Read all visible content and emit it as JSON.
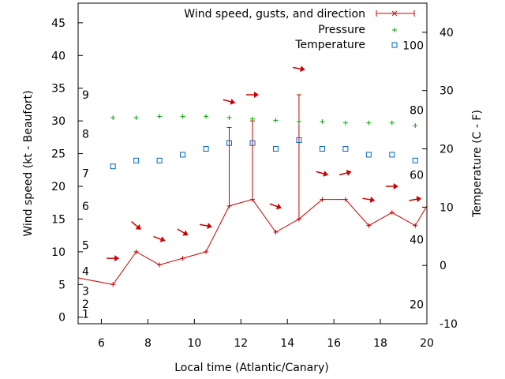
{
  "chart_data": {
    "type": "line",
    "xlabel": "Local time (Atlantic/Canary)",
    "ylabel_left": "Wind speed (kt - Beaufort)",
    "ylabel_right": "Temperature (C - F)",
    "xlim": [
      5,
      20
    ],
    "ylim_left": [
      -1,
      48
    ],
    "ylim_right": [
      -10,
      45
    ],
    "x_ticks": [
      "6",
      "8",
      "10",
      "12",
      "14",
      "16",
      "18",
      "20"
    ],
    "y_ticks_left": [
      "0",
      "5",
      "10",
      "15",
      "20",
      "25",
      "30",
      "35",
      "40",
      "45"
    ],
    "y_ticks_right": [
      "-10",
      "0",
      "10",
      "20",
      "30",
      "40"
    ],
    "fahrenheit_labels": [
      "20",
      "40",
      "60",
      "80",
      "100"
    ],
    "beaufort_labels": [
      "1",
      "2",
      "3",
      "4",
      "5",
      "6",
      "7",
      "8",
      "9"
    ],
    "legend": {
      "placement": "top-right",
      "wind": "Wind speed, gusts, and direction",
      "pressure": "Pressure",
      "temperature": "Temperature"
    },
    "colors": {
      "wind": "#cc0000",
      "pressure": "#00aa00",
      "temperature": "#0066bb"
    },
    "wind": {
      "x": [
        5.0,
        6.5,
        7.5,
        8.5,
        9.5,
        10.5,
        11.5,
        12.5,
        13.5,
        14.5,
        15.5,
        16.5,
        17.5,
        18.5,
        19.5,
        20.0
      ],
      "speed": [
        6,
        5,
        10,
        8,
        9,
        10,
        17,
        18,
        13,
        15,
        18,
        18,
        14,
        16,
        14,
        17
      ]
    },
    "gusts": [
      {
        "x": 11.5,
        "value": 29
      },
      {
        "x": 12.5,
        "value": 30
      },
      {
        "x": 14.5,
        "value": 34
      }
    ],
    "direction_arrows": [
      {
        "x": 6.5,
        "y": 9,
        "angle": 0
      },
      {
        "x": 7.5,
        "y": 14,
        "angle": 40
      },
      {
        "x": 8.5,
        "y": 12,
        "angle": 20
      },
      {
        "x": 9.5,
        "y": 13,
        "angle": 30
      },
      {
        "x": 10.5,
        "y": 14,
        "angle": 10
      },
      {
        "x": 11.5,
        "y": 33,
        "angle": 15
      },
      {
        "x": 12.5,
        "y": 34,
        "angle": 0
      },
      {
        "x": 13.5,
        "y": 17,
        "angle": 20
      },
      {
        "x": 14.5,
        "y": 38,
        "angle": 10
      },
      {
        "x": 15.5,
        "y": 22,
        "angle": 15
      },
      {
        "x": 16.5,
        "y": 22,
        "angle": -15
      },
      {
        "x": 17.5,
        "y": 18,
        "angle": 10
      },
      {
        "x": 18.5,
        "y": 20,
        "angle": 0
      },
      {
        "x": 19.5,
        "y": 18,
        "angle": -10
      }
    ],
    "pressure": {
      "x": [
        6.5,
        7.5,
        8.5,
        9.5,
        10.5,
        11.5,
        12.5,
        13.5,
        14.5,
        15.5,
        16.5,
        17.5,
        18.5,
        19.5
      ],
      "values": [
        30.5,
        30.5,
        30.7,
        30.7,
        30.7,
        30.5,
        30.3,
        30.1,
        29.9,
        29.9,
        29.7,
        29.7,
        29.7,
        29.3
      ]
    },
    "temperature": {
      "x": [
        6.5,
        7.5,
        8.5,
        9.5,
        10.5,
        11.5,
        12.5,
        13.5,
        14.5,
        15.5,
        16.5,
        17.5,
        18.5,
        19.5
      ],
      "values": [
        17,
        18,
        18,
        19,
        20,
        21,
        21,
        20,
        21.5,
        20,
        20,
        19,
        19,
        18
      ]
    }
  }
}
